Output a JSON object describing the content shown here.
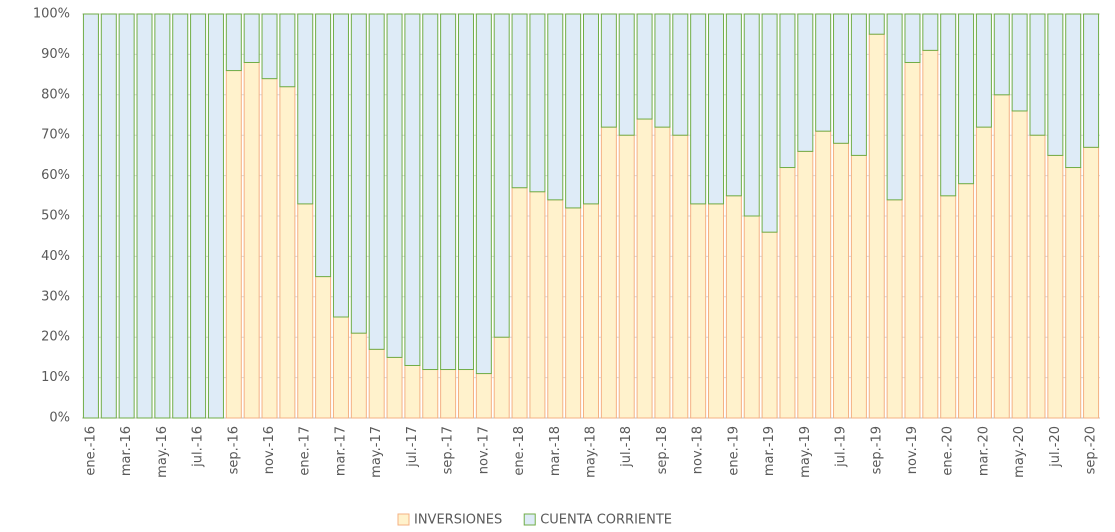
{
  "chart_data": {
    "type": "bar",
    "stacked": true,
    "categories": [
      "ene.-16",
      null,
      "mar.-16",
      null,
      "may.-16",
      null,
      "jul.-16",
      null,
      "sep.-16",
      null,
      "nov.-16",
      null,
      "ene.-17",
      null,
      "mar.-17",
      null,
      "may.-17",
      null,
      "jul.-17",
      null,
      "sep.-17",
      null,
      "nov.-17",
      null,
      "ene.-18",
      null,
      "mar.-18",
      null,
      "may.-18",
      null,
      "jul.-18",
      null,
      "sep.-18",
      null,
      "nov.-18",
      null,
      "ene.-19",
      null,
      "mar.-19",
      null,
      "may.-19",
      null,
      "jul.-19",
      null,
      "sep.-19",
      null,
      "nov.-19",
      null,
      "ene.-20",
      null,
      "mar.-20",
      null,
      "may.-20",
      null,
      "jul.-20",
      null,
      "sep.-20"
    ],
    "series": [
      {
        "name": "INVERSIONES",
        "color": "#fff2cc",
        "stroke": "#f4b183",
        "values": [
          0,
          0,
          0,
          0,
          0,
          0,
          0,
          0,
          86,
          88,
          84,
          82,
          53,
          35,
          25,
          21,
          17,
          15,
          13,
          12,
          12,
          12,
          11,
          20,
          57,
          56,
          54,
          52,
          53,
          72,
          70,
          74,
          72,
          70,
          53,
          53,
          55,
          50,
          46,
          62,
          66,
          71,
          68,
          65,
          95,
          54,
          88,
          91,
          55,
          58,
          72,
          80,
          76,
          70,
          65,
          62,
          67
        ]
      },
      {
        "name": "CUENTA CORRIENTE",
        "color": "#deebf7",
        "stroke": "#70ad47",
        "values": [
          100,
          100,
          100,
          100,
          100,
          100,
          100,
          100,
          14,
          12,
          16,
          18,
          47,
          65,
          75,
          79,
          83,
          85,
          87,
          88,
          88,
          88,
          89,
          80,
          43,
          44,
          46,
          48,
          47,
          28,
          30,
          26,
          28,
          30,
          47,
          47,
          45,
          50,
          54,
          38,
          34,
          29,
          32,
          35,
          5,
          46,
          12,
          9,
          45,
          42,
          28,
          20,
          24,
          30,
          35,
          38,
          33
        ]
      }
    ],
    "ylim": [
      0,
      100
    ],
    "yticks": [
      {
        "value": 0,
        "label": "0%"
      },
      {
        "value": 10,
        "label": "10%"
      },
      {
        "value": 20,
        "label": "20%"
      },
      {
        "value": 30,
        "label": "30%"
      },
      {
        "value": 40,
        "label": "40%"
      },
      {
        "value": 50,
        "label": "50%"
      },
      {
        "value": 60,
        "label": "60%"
      },
      {
        "value": 70,
        "label": "70%"
      },
      {
        "value": 80,
        "label": "80%"
      },
      {
        "value": 90,
        "label": "90%"
      },
      {
        "value": 100,
        "label": "100%"
      }
    ],
    "grid": true,
    "legend": "bottom"
  }
}
